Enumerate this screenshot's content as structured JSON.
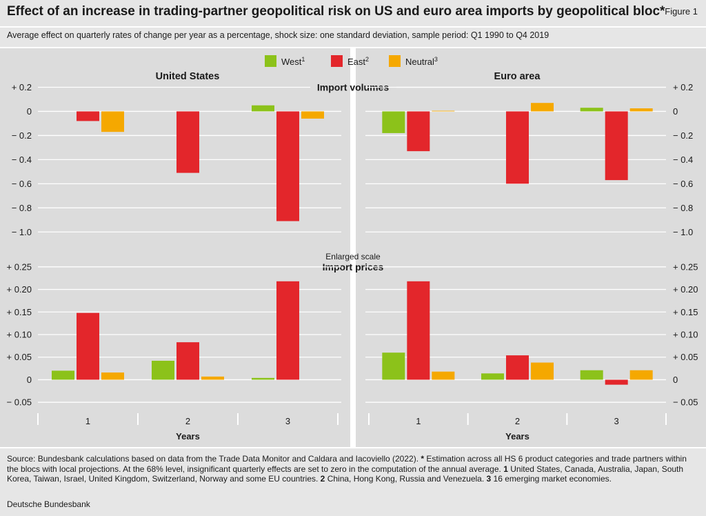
{
  "title": "Effect of an increase in trading-partner geopolitical risk on US and euro area imports by geopolitical bloc*",
  "figure_label": "Figure 1",
  "subtitle": "Average effect on quarterly rates of change per year as a percentage, shock size: one standard deviation, sample period: Q1 1990 to Q4 2019",
  "footnotes": {
    "part1": "Source: Bundesbank calculations based on data from the Trade Data Monitor and Caldara and Iacoviello (2022). ",
    "m0": "*",
    "part2": " Estimation across all HS 6 product categories and trade partners within the blocs with local projections. At the 68% level, insignificant quarterly effects are set to zero in the computation of the annual average. ",
    "m1": "1",
    "part3": " United States, Canada, Australia, Japan, South Korea, Taiwan, Israel, United Kingdom, Switzerland, Norway and some EU countries. ",
    "m2": "2",
    "part4": " China, Hong Kong, Russia and Venezuela. ",
    "m3": "3",
    "part5": " 16 emerging market economies."
  },
  "publisher": "Deutsche Bundesbank",
  "colors": {
    "West": "#8cc21a",
    "East": "#e3262b",
    "Neutral": "#f5a800"
  },
  "chart_data": {
    "type": "bar",
    "legend": [
      {
        "name": "West",
        "sup": "1"
      },
      {
        "name": "East",
        "sup": "2"
      },
      {
        "name": "Neutral",
        "sup": "3"
      }
    ],
    "columns": [
      "United States",
      "Euro area"
    ],
    "categories": [
      "1",
      "2",
      "3"
    ],
    "xlabel": "Years",
    "panels": [
      {
        "title": "Import volumes",
        "ylim": [
          -1.05,
          0.22
        ],
        "ticks": [
          0.2,
          0,
          -0.2,
          -0.4,
          -0.6,
          -0.8,
          -1.0
        ],
        "tick_labels": [
          "+ 0.2",
          "0",
          "− 0.2",
          "− 0.4",
          "− 0.6",
          "− 0.8",
          "− 1.0"
        ],
        "data": {
          "United States": {
            "West": [
              0,
              0,
              0.05
            ],
            "East": [
              -0.08,
              -0.51,
              -0.91
            ],
            "Neutral": [
              -0.17,
              0,
              -0.06
            ]
          },
          "Euro area": {
            "West": [
              -0.18,
              0,
              0.03
            ],
            "East": [
              -0.33,
              -0.6,
              -0.57
            ],
            "Neutral": [
              0.005,
              0.07,
              0.025
            ]
          }
        }
      },
      {
        "title": "Import prices",
        "note": "Enlarged scale",
        "ylim": [
          -0.065,
          0.265
        ],
        "ticks": [
          0.25,
          0.2,
          0.15,
          0.1,
          0.05,
          0,
          -0.05
        ],
        "tick_labels": [
          "+ 0.25",
          "+ 0.20",
          "+ 0.15",
          "+ 0.10",
          "+ 0.05",
          "0",
          "− 0.05"
        ],
        "data": {
          "United States": {
            "West": [
              0.02,
              0.042,
              0.004
            ],
            "East": [
              0.148,
              0.083,
              0.218
            ],
            "Neutral": [
              0.016,
              0.007,
              0
            ]
          },
          "Euro area": {
            "West": [
              0.06,
              0.014,
              0.021
            ],
            "East": [
              0.218,
              0.054,
              -0.011
            ],
            "Neutral": [
              0.018,
              0.038,
              0.021
            ]
          }
        }
      }
    ]
  }
}
